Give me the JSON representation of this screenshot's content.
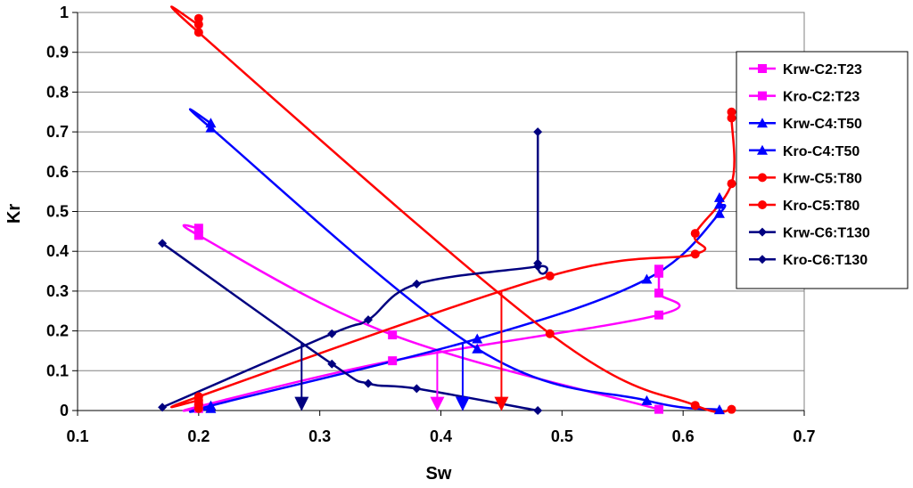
{
  "chart_data": {
    "type": "line",
    "title": "",
    "xlabel": "Sw",
    "ylabel": "Kr",
    "xlim": [
      0.1,
      0.7
    ],
    "ylim": [
      0,
      1
    ],
    "xticks": [
      "0.1",
      "0.2",
      "0.3",
      "0.4",
      "0.5",
      "0.6",
      "0.7"
    ],
    "yticks": [
      "0",
      "0.1",
      "0.2",
      "0.3",
      "0.4",
      "0.5",
      "0.6",
      "0.7",
      "0.8",
      "0.9",
      "1"
    ],
    "grid": "horizontal",
    "legend_position": "right",
    "series": [
      {
        "name": "Krw-C2:T23",
        "color": "#ff00ff",
        "marker": "square",
        "points": [
          [
            0.2,
            0.005
          ],
          [
            0.2,
            0.01
          ],
          [
            0.36,
            0.125
          ],
          [
            0.58,
            0.24
          ],
          [
            0.58,
            0.295
          ],
          [
            0.58,
            0.345
          ],
          [
            0.58,
            0.355
          ]
        ]
      },
      {
        "name": "Kro-C2:T23",
        "color": "#ff00ff",
        "marker": "square",
        "points": [
          [
            0.2,
            0.458
          ],
          [
            0.2,
            0.44
          ],
          [
            0.36,
            0.19
          ],
          [
            0.58,
            0.003
          ]
        ]
      },
      {
        "name": "Krw-C4:T50",
        "color": "#0000ff",
        "marker": "triangle",
        "points": [
          [
            0.21,
            0.005
          ],
          [
            0.21,
            0.012
          ],
          [
            0.43,
            0.18
          ],
          [
            0.57,
            0.33
          ],
          [
            0.63,
            0.495
          ],
          [
            0.63,
            0.518
          ],
          [
            0.63,
            0.535
          ]
        ]
      },
      {
        "name": "Kro-C4:T50",
        "color": "#0000ff",
        "marker": "triangle",
        "points": [
          [
            0.21,
            0.722
          ],
          [
            0.21,
            0.71
          ],
          [
            0.43,
            0.155
          ],
          [
            0.57,
            0.025
          ],
          [
            0.63,
            0.002
          ]
        ]
      },
      {
        "name": "Krw-C5:T80",
        "color": "#ff0000",
        "marker": "circle",
        "points": [
          [
            0.2,
            0.005
          ],
          [
            0.2,
            0.015
          ],
          [
            0.2,
            0.025
          ],
          [
            0.2,
            0.035
          ],
          [
            0.49,
            0.338
          ],
          [
            0.61,
            0.393
          ],
          [
            0.61,
            0.445
          ],
          [
            0.64,
            0.57
          ],
          [
            0.64,
            0.735
          ],
          [
            0.64,
            0.75
          ]
        ]
      },
      {
        "name": "Kro-C5:T80",
        "color": "#ff0000",
        "marker": "circle",
        "points": [
          [
            0.2,
            0.985
          ],
          [
            0.2,
            0.97
          ],
          [
            0.2,
            0.95
          ],
          [
            0.49,
            0.193
          ],
          [
            0.61,
            0.013
          ],
          [
            0.64,
            0.003
          ]
        ]
      },
      {
        "name": "Krw-C6:T130",
        "color": "#000080",
        "marker": "diamond",
        "points": [
          [
            0.17,
            0.008
          ],
          [
            0.31,
            0.193
          ],
          [
            0.34,
            0.228
          ],
          [
            0.38,
            0.318
          ],
          [
            0.48,
            0.362
          ],
          [
            0.48,
            0.37
          ],
          [
            0.48,
            0.7
          ]
        ]
      },
      {
        "name": "Kro-C6:T130",
        "color": "#000080",
        "marker": "diamond",
        "points": [
          [
            0.17,
            0.42
          ],
          [
            0.31,
            0.117
          ],
          [
            0.34,
            0.068
          ],
          [
            0.38,
            0.055
          ],
          [
            0.48,
            0.0
          ]
        ]
      }
    ],
    "annotations": [
      {
        "type": "arrow",
        "color": "#000080",
        "x": 0.285,
        "y_from": 0.17,
        "y_to": 0.0
      },
      {
        "type": "arrow",
        "color": "#ff00ff",
        "x": 0.397,
        "y_from": 0.15,
        "y_to": 0.0
      },
      {
        "type": "arrow",
        "color": "#0000ff",
        "x": 0.418,
        "y_from": 0.17,
        "y_to": 0.0
      },
      {
        "type": "arrow",
        "color": "#ff0000",
        "x": 0.45,
        "y_from": 0.3,
        "y_to": 0.0
      }
    ]
  }
}
